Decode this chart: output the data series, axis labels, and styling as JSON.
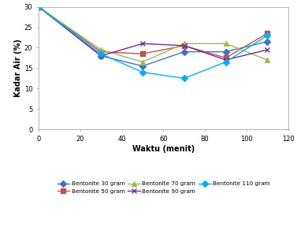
{
  "x": [
    0,
    30,
    50,
    70,
    90,
    110
  ],
  "series": [
    {
      "label": "Bentonite 30 gram",
      "color": "#4472C4",
      "marker": "D",
      "markersize": 4,
      "y": [
        30,
        18,
        15.5,
        19,
        19,
        21.5
      ]
    },
    {
      "label": "Bentonite 50 gram",
      "color": "#C0504D",
      "marker": "s",
      "markersize": 5,
      "y": [
        30,
        19,
        18.5,
        20.5,
        17.5,
        23.5
      ]
    },
    {
      "label": "Bentonite 70 gram",
      "color": "#9BBB59",
      "marker": "^",
      "markersize": 5,
      "y": [
        30,
        19.5,
        16.5,
        21,
        21,
        17
      ]
    },
    {
      "label": "Bentonite 90 gram",
      "color": "#7030A0",
      "marker": "x",
      "markersize": 5,
      "y": [
        30,
        18,
        21,
        20.5,
        17,
        19.5
      ]
    },
    {
      "label": "Bentonite 110 gram",
      "color": "#00B0F0",
      "marker": "D",
      "markersize": 4,
      "y": [
        30,
        18.5,
        14,
        12.5,
        16.5,
        23
      ]
    }
  ],
  "xlabel": "Waktu (menit)",
  "ylabel": "Kadar Air (%)",
  "xlim": [
    0,
    120
  ],
  "ylim": [
    0,
    30
  ],
  "xticks": [
    0,
    20,
    40,
    60,
    80,
    100,
    120
  ],
  "yticks": [
    0,
    5,
    10,
    15,
    20,
    25,
    30
  ],
  "bg_color": "#FFFFFF",
  "spine_color": "#AAAAAA"
}
